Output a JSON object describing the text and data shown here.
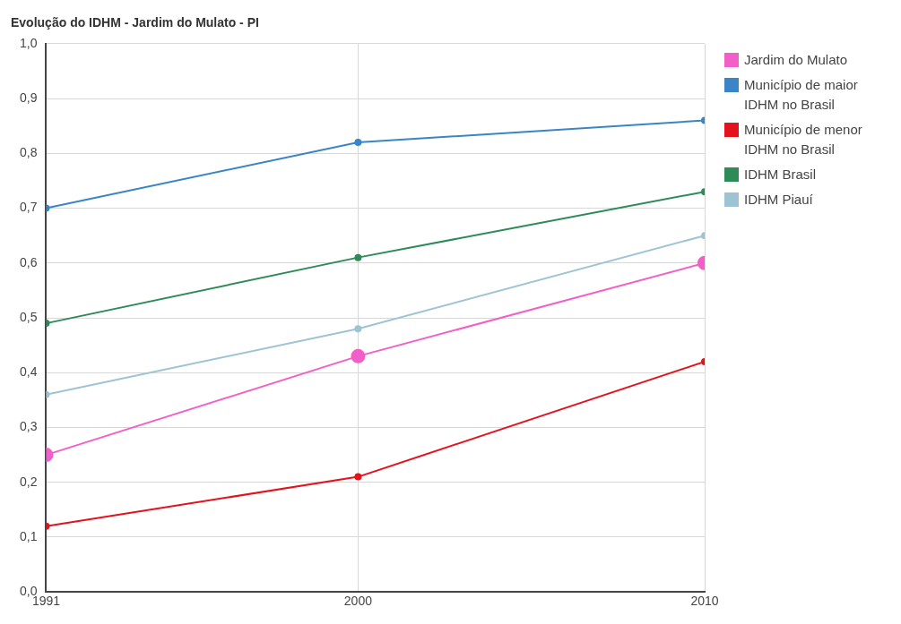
{
  "chart_data": {
    "type": "line",
    "title": "Evolução do IDHM - Jardim do Mulato - PI",
    "x": [
      1991,
      2000,
      2010
    ],
    "xlim": [
      1991,
      2010
    ],
    "xticks": [
      1991,
      2000,
      2010
    ],
    "ylim": [
      0,
      1
    ],
    "yticks": [
      {
        "value": 0,
        "label": "0,0"
      },
      {
        "value": 0.1,
        "label": "0,1"
      },
      {
        "value": 0.2,
        "label": "0,2"
      },
      {
        "value": 0.3,
        "label": "0,3"
      },
      {
        "value": 0.4,
        "label": "0,4"
      },
      {
        "value": 0.5,
        "label": "0,5"
      },
      {
        "value": 0.6,
        "label": "0,6"
      },
      {
        "value": 0.7,
        "label": "0,7"
      },
      {
        "value": 0.8,
        "label": "0,8"
      },
      {
        "value": 0.9,
        "label": "0,9"
      },
      {
        "value": 1,
        "label": "1,0"
      }
    ],
    "grid": true,
    "legend": "top right",
    "marker": "circle",
    "line_style": "solid",
    "series": [
      {
        "name": "Jardim do Mulato",
        "color": "#f060c8",
        "values": [
          0.25,
          0.43,
          0.6
        ]
      },
      {
        "name": "Município de maior IDHM no Brasil",
        "color": "#3a85c6",
        "values": [
          0.7,
          0.82,
          0.86
        ]
      },
      {
        "name": "Município de menor IDHM no Brasil",
        "color": "#e4121c",
        "values": [
          0.12,
          0.21,
          0.42
        ]
      },
      {
        "name": "IDHM Brasil",
        "color": "#2e8b57",
        "values": [
          0.49,
          0.61,
          0.73
        ]
      },
      {
        "name": "IDHM Piauí",
        "color": "#9ec4d4",
        "values": [
          0.36,
          0.48,
          0.65
        ]
      }
    ]
  }
}
